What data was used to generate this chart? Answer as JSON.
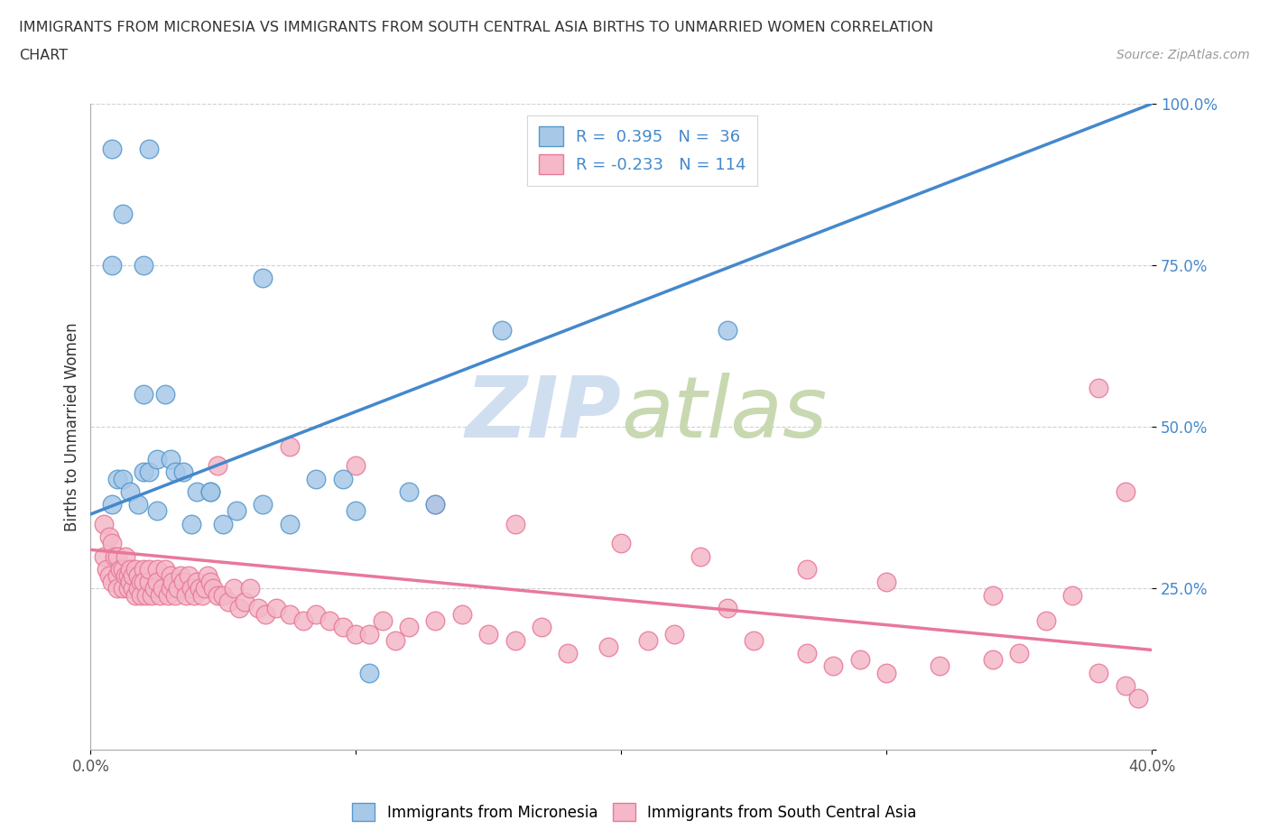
{
  "title_line1": "IMMIGRANTS FROM MICRONESIA VS IMMIGRANTS FROM SOUTH CENTRAL ASIA BIRTHS TO UNMARRIED WOMEN CORRELATION",
  "title_line2": "CHART",
  "source": "Source: ZipAtlas.com",
  "ylabel": "Births to Unmarried Women",
  "legend_label1": "Immigrants from Micronesia",
  "legend_label2": "Immigrants from South Central Asia",
  "R1": 0.395,
  "N1": 36,
  "R2": -0.233,
  "N2": 114,
  "xlim": [
    0.0,
    0.4
  ],
  "ylim": [
    0.0,
    1.0
  ],
  "color_blue_fill": "#a8c8e8",
  "color_blue_edge": "#5599cc",
  "color_pink_fill": "#f4b8c8",
  "color_pink_edge": "#e8789a",
  "color_trend_blue": "#4488cc",
  "color_trend_pink": "#e8789a",
  "watermark_color": "#d0dff0",
  "blue_trend_x": [
    0.0,
    0.4
  ],
  "blue_trend_y": [
    0.365,
    1.0
  ],
  "pink_trend_x": [
    0.0,
    0.4
  ],
  "pink_trend_y": [
    0.31,
    0.155
  ],
  "mic_x": [
    0.008,
    0.022,
    0.012,
    0.008,
    0.02,
    0.008,
    0.01,
    0.012,
    0.015,
    0.018,
    0.02,
    0.022,
    0.025,
    0.025,
    0.028,
    0.03,
    0.032,
    0.035,
    0.038,
    0.04,
    0.045,
    0.05,
    0.055,
    0.065,
    0.085,
    0.095,
    0.1,
    0.12,
    0.13,
    0.155,
    0.24,
    0.02,
    0.045,
    0.065,
    0.075,
    0.105
  ],
  "mic_y": [
    0.93,
    0.93,
    0.83,
    0.75,
    0.75,
    0.38,
    0.42,
    0.42,
    0.4,
    0.38,
    0.43,
    0.43,
    0.45,
    0.37,
    0.55,
    0.45,
    0.43,
    0.43,
    0.35,
    0.4,
    0.4,
    0.35,
    0.37,
    0.73,
    0.42,
    0.42,
    0.37,
    0.4,
    0.38,
    0.65,
    0.65,
    0.55,
    0.4,
    0.38,
    0.35,
    0.12
  ],
  "sa_x": [
    0.005,
    0.005,
    0.006,
    0.007,
    0.007,
    0.008,
    0.008,
    0.009,
    0.01,
    0.01,
    0.01,
    0.011,
    0.012,
    0.012,
    0.013,
    0.013,
    0.014,
    0.014,
    0.015,
    0.015,
    0.016,
    0.016,
    0.017,
    0.017,
    0.018,
    0.018,
    0.019,
    0.019,
    0.02,
    0.02,
    0.021,
    0.022,
    0.022,
    0.023,
    0.024,
    0.025,
    0.025,
    0.026,
    0.027,
    0.028,
    0.029,
    0.03,
    0.03,
    0.031,
    0.032,
    0.033,
    0.034,
    0.035,
    0.036,
    0.037,
    0.038,
    0.039,
    0.04,
    0.041,
    0.042,
    0.043,
    0.044,
    0.045,
    0.046,
    0.048,
    0.05,
    0.052,
    0.054,
    0.056,
    0.058,
    0.06,
    0.063,
    0.066,
    0.07,
    0.075,
    0.08,
    0.085,
    0.09,
    0.095,
    0.1,
    0.105,
    0.11,
    0.115,
    0.12,
    0.13,
    0.14,
    0.15,
    0.16,
    0.17,
    0.18,
    0.195,
    0.21,
    0.22,
    0.24,
    0.25,
    0.27,
    0.28,
    0.29,
    0.3,
    0.32,
    0.34,
    0.35,
    0.36,
    0.37,
    0.38,
    0.39,
    0.395,
    0.048,
    0.075,
    0.1,
    0.13,
    0.16,
    0.2,
    0.23,
    0.27,
    0.3,
    0.34,
    0.38,
    0.39
  ],
  "sa_y": [
    0.35,
    0.3,
    0.28,
    0.33,
    0.27,
    0.32,
    0.26,
    0.3,
    0.3,
    0.27,
    0.25,
    0.28,
    0.25,
    0.28,
    0.27,
    0.3,
    0.27,
    0.25,
    0.26,
    0.28,
    0.25,
    0.27,
    0.24,
    0.28,
    0.25,
    0.27,
    0.26,
    0.24,
    0.28,
    0.26,
    0.24,
    0.26,
    0.28,
    0.24,
    0.25,
    0.28,
    0.26,
    0.24,
    0.25,
    0.28,
    0.24,
    0.27,
    0.25,
    0.26,
    0.24,
    0.25,
    0.27,
    0.26,
    0.24,
    0.27,
    0.25,
    0.24,
    0.26,
    0.25,
    0.24,
    0.25,
    0.27,
    0.26,
    0.25,
    0.24,
    0.24,
    0.23,
    0.25,
    0.22,
    0.23,
    0.25,
    0.22,
    0.21,
    0.22,
    0.21,
    0.2,
    0.21,
    0.2,
    0.19,
    0.18,
    0.18,
    0.2,
    0.17,
    0.19,
    0.2,
    0.21,
    0.18,
    0.17,
    0.19,
    0.15,
    0.16,
    0.17,
    0.18,
    0.22,
    0.17,
    0.15,
    0.13,
    0.14,
    0.12,
    0.13,
    0.14,
    0.15,
    0.2,
    0.24,
    0.12,
    0.1,
    0.08,
    0.44,
    0.47,
    0.44,
    0.38,
    0.35,
    0.32,
    0.3,
    0.28,
    0.26,
    0.24,
    0.56,
    0.4
  ]
}
